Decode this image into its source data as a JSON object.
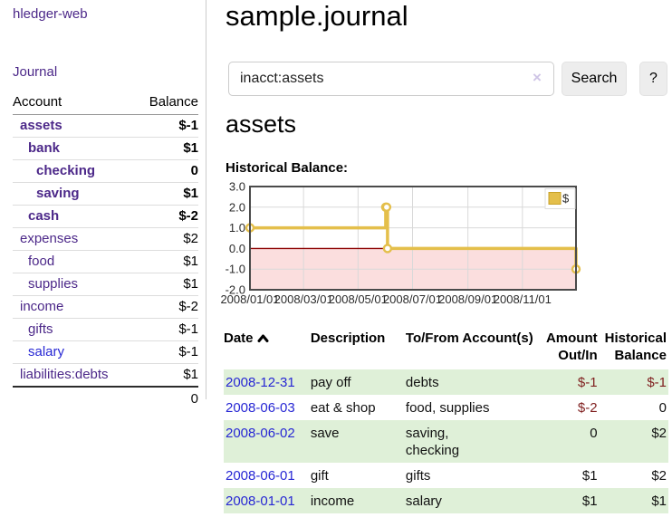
{
  "sidebar": {
    "brand": "hledger-web",
    "journal_link": "Journal",
    "accounts": {
      "header_account": "Account",
      "header_balance": "Balance",
      "rows": [
        {
          "name": "assets",
          "depth": 1,
          "emph": true,
          "balance": "$-1",
          "bal_class": "neg-strong"
        },
        {
          "name": "bank",
          "depth": 2,
          "emph": true,
          "balance": "$1",
          "bal_class": ""
        },
        {
          "name": "checking",
          "depth": 3,
          "emph": true,
          "balance": "0",
          "bal_class": ""
        },
        {
          "name": "saving",
          "depth": 3,
          "emph": true,
          "balance": "$1",
          "bal_class": ""
        },
        {
          "name": "cash",
          "depth": 2,
          "emph": true,
          "balance": "$-2",
          "bal_class": "neg-strong"
        },
        {
          "name": "expenses",
          "depth": 1,
          "emph": false,
          "balance": "$2",
          "bal_class": ""
        },
        {
          "name": "food",
          "depth": 2,
          "emph": false,
          "balance": "$1",
          "bal_class": ""
        },
        {
          "name": "supplies",
          "depth": 2,
          "emph": false,
          "balance": "$1",
          "bal_class": ""
        },
        {
          "name": "income",
          "depth": 1,
          "emph": false,
          "balance": "$-2",
          "bal_class": "neg-soft"
        },
        {
          "name": "gifts",
          "depth": 2,
          "emph": false,
          "balance": "$-1",
          "bal_class": "neg-soft"
        },
        {
          "name": "salary",
          "depth": 2,
          "emph": false,
          "balance": "$-1",
          "bal_class": "neg-soft",
          "alt_link": true
        },
        {
          "name": "liabilities:debts",
          "depth": 1,
          "emph": false,
          "balance": "$1",
          "bal_class": ""
        }
      ],
      "total": "0"
    }
  },
  "main": {
    "title": "sample.journal",
    "search": {
      "value": "inacct:assets",
      "clear_icon": "×",
      "button_label": "Search",
      "help_label": "?"
    },
    "account_heading": "assets",
    "chart_heading": "Historical Balance:"
  },
  "chart_data": {
    "type": "line",
    "step": true,
    "title": "Historical Balance:",
    "legend": "$",
    "legend_position": "top-right",
    "series": [
      {
        "name": "$",
        "points": [
          {
            "date": "2008-01-01",
            "value": 1
          },
          {
            "date": "2008-06-01",
            "value": 2
          },
          {
            "date": "2008-06-02",
            "value": 2
          },
          {
            "date": "2008-06-03",
            "value": 0
          },
          {
            "date": "2008-12-31",
            "value": -1
          }
        ]
      }
    ],
    "x_range": [
      "2008-01-01",
      "2008-12-31"
    ],
    "x_tick_labels": [
      "2008/01/01",
      "2008/03/01",
      "2008/05/01",
      "2008/07/01",
      "2008/09/01",
      "2008/11/01"
    ],
    "y_ticks": [
      3.0,
      2.0,
      1.0,
      0.0,
      -1.0,
      -2.0
    ],
    "y_tick_labels": [
      "3.0",
      "2.0",
      "1.0",
      "0.0",
      "-1.0",
      "-2.0"
    ],
    "ylim": [
      -2,
      3
    ],
    "grid": true,
    "colors": {
      "line": "#e4bf4b",
      "line_edge": "#c9a22a",
      "marker_fill": "#ffffff",
      "negative_fill": "#fbdede",
      "zero_line": "#8b0000",
      "grid": "#d9d9d9",
      "frame": "#4a4a4a"
    }
  },
  "register": {
    "headers": {
      "date": "Date",
      "description": "Description",
      "accounts": "To/From Account(s)",
      "amount": "Amount Out/In",
      "balance": "Historical Balance"
    },
    "rows": [
      {
        "date": "2008-12-31",
        "description": "pay off",
        "accounts_lines": [
          "debts"
        ],
        "amount": "$-1",
        "amount_neg": true,
        "balance": "$-1",
        "balance_neg": true,
        "stripe": true
      },
      {
        "date": "2008-06-03",
        "description": "eat & shop",
        "accounts_lines": [
          "food, supplies"
        ],
        "amount": "$-2",
        "amount_neg": true,
        "balance": "0",
        "balance_neg": false,
        "stripe": false
      },
      {
        "date": "2008-06-02",
        "description": "save",
        "accounts_lines": [
          "saving,",
          "checking"
        ],
        "amount": "0",
        "amount_neg": false,
        "balance": "$2",
        "balance_neg": false,
        "stripe": true
      },
      {
        "date": "2008-06-01",
        "description": "gift",
        "accounts_lines": [
          "gifts"
        ],
        "amount": "$1",
        "amount_neg": false,
        "balance": "$2",
        "balance_neg": false,
        "stripe": false
      },
      {
        "date": "2008-01-01",
        "description": "income",
        "accounts_lines": [
          "salary"
        ],
        "amount": "$1",
        "amount_neg": false,
        "balance": "$1",
        "balance_neg": false,
        "stripe": true
      }
    ]
  }
}
